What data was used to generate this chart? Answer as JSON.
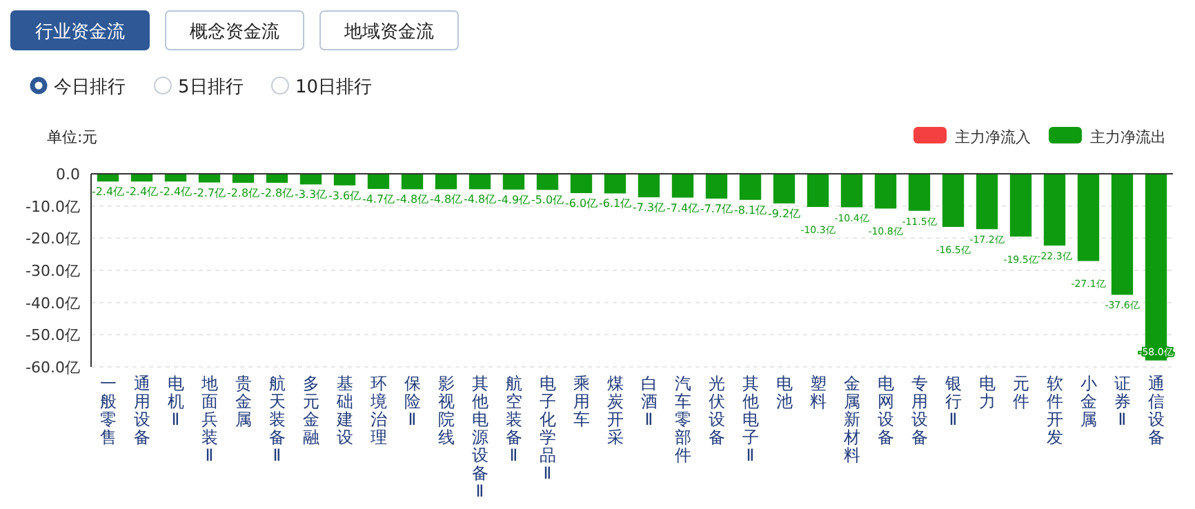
{
  "chart_data": {
    "type": "bar",
    "ylabel": "单位:元",
    "annotations": [
      "行业资金流",
      "概念资金流",
      "地域资金流",
      "今日排行",
      "5日排行",
      "10日排行"
    ],
    "categories": [
      "一般零售",
      "通用设备",
      "电机Ⅱ",
      "地面兵装Ⅱ",
      "贵金属",
      "航天装备Ⅱ",
      "多元金融",
      "基础建设",
      "环境治理",
      "保险Ⅱ",
      "影视院线",
      "其他电源设备Ⅱ",
      "航空装备Ⅱ",
      "电子化学品Ⅱ",
      "乘用车",
      "煤炭开采",
      "白酒Ⅱ",
      "汽车零部件",
      "光伏设备",
      "其他电子Ⅱ",
      "电池",
      "塑料",
      "金属新材料",
      "电网设备",
      "专用设备",
      "银行Ⅱ",
      "电力",
      "元件",
      "软件开发",
      "小金属",
      "证券Ⅱ",
      "通信设备"
    ],
    "series": [
      {
        "name": "主力净流入",
        "color": "#f44040",
        "values": [
          null,
          null,
          null,
          null,
          null,
          null,
          null,
          null,
          null,
          null,
          null,
          null,
          null,
          null,
          null,
          null,
          null,
          null,
          null,
          null,
          null,
          null,
          null,
          null,
          null,
          null,
          null,
          null,
          null,
          null,
          null,
          null
        ]
      },
      {
        "name": "主力净流出",
        "color": "#0f9b0f",
        "values": [
          -2.4,
          -2.4,
          -2.4,
          -2.7,
          -2.8,
          -2.8,
          -3.3,
          -3.6,
          -4.7,
          -4.8,
          -4.8,
          -4.8,
          -4.9,
          -5.0,
          -6.0,
          -6.1,
          -7.3,
          -7.4,
          -7.7,
          -8.1,
          -9.2,
          -10.3,
          -10.4,
          -10.8,
          -11.5,
          -16.5,
          -17.2,
          -19.5,
          -22.3,
          -27.1,
          -37.6,
          -58.0
        ],
        "value_labels": [
          "-2.4亿",
          "-2.4亿",
          "-2.4亿",
          "-2.7亿",
          "-2.8亿",
          "-2.8亿",
          "-3.3亿",
          "-3.6亿",
          "-4.7亿",
          "-4.8亿",
          "-4.8亿",
          "-4.8亿",
          "-4.9亿",
          "-5.0亿",
          "-6.0亿",
          "-6.1亿",
          "-7.3亿",
          "-7.4亿",
          "-7.7亿",
          "-8.1亿",
          "-9.2亿",
          "-10.3亿",
          "-10.4亿",
          "-10.8亿",
          "-11.5亿",
          "-16.5亿",
          "-17.2亿",
          "-19.5亿",
          "-22.3亿",
          "-27.1亿",
          "-37.6亿",
          "-58.0亿"
        ]
      }
    ],
    "ylim": [
      -60,
      0
    ],
    "yticks": [
      {
        "value": 0,
        "label": "0.0"
      },
      {
        "value": -10,
        "label": "-10.0亿"
      },
      {
        "value": -20,
        "label": "-20.0亿"
      },
      {
        "value": -30,
        "label": "-30.0亿"
      },
      {
        "value": -40,
        "label": "-40.0亿"
      },
      {
        "value": -50,
        "label": "-50.0亿"
      },
      {
        "value": -60,
        "label": "-60.0亿"
      }
    ],
    "grid": "y",
    "legend": "top right"
  }
}
